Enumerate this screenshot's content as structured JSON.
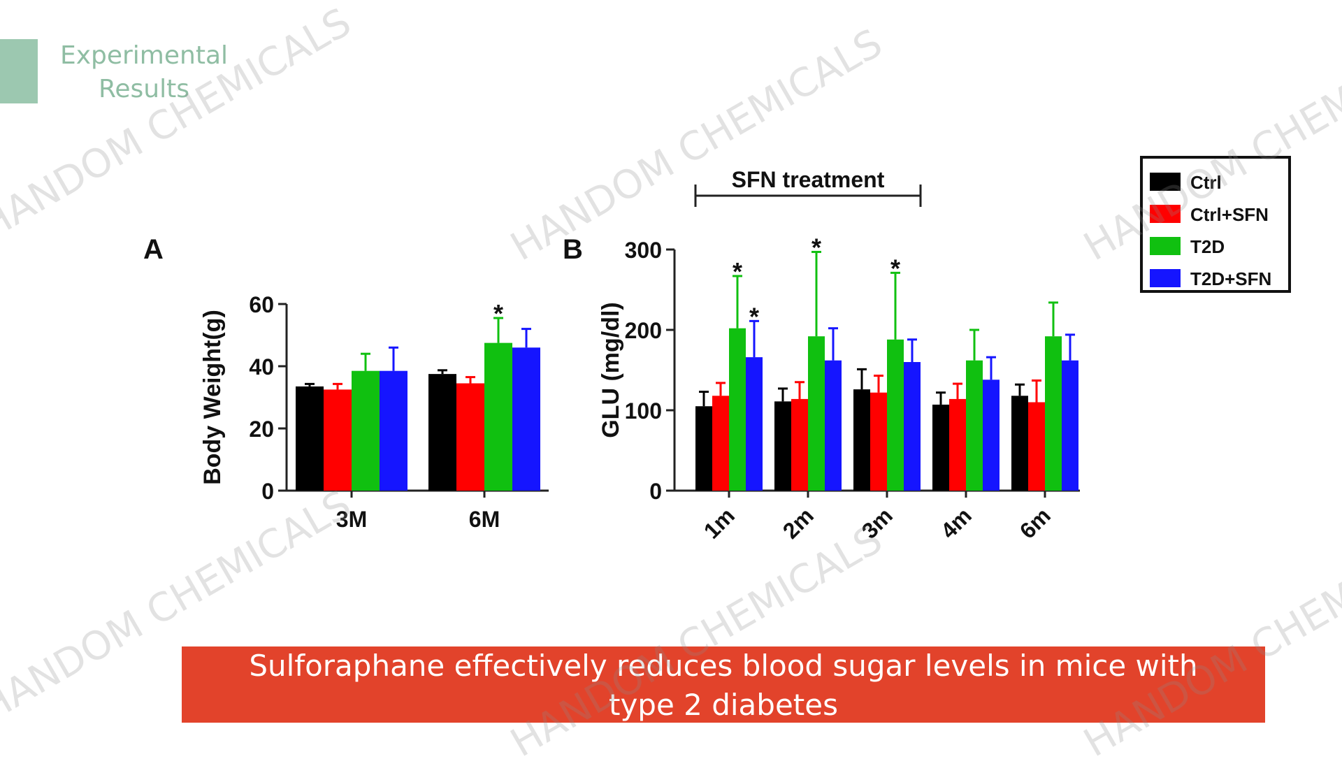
{
  "header": {
    "title_line1": "Experimental",
    "title_line2": "Results"
  },
  "caption": {
    "line1": "Sulforaphane effectively reduces blood sugar levels in mice with",
    "line2": "type 2 diabetes"
  },
  "watermark": "HANDOM CHEMICALS",
  "colors": {
    "accent": "#9cc8b0",
    "accent_text": "#8fbda3",
    "caption_bg": "#e2432b",
    "Ctrl": "#000000",
    "Ctrl+SFN": "#ff0000",
    "T2D": "#10c010",
    "T2D+SFN": "#1515ff"
  },
  "chart_data": [
    {
      "panel": "A",
      "type": "bar",
      "xlabel": "",
      "ylabel": "Body Weight(g)",
      "ylim": [
        0,
        60
      ],
      "yticks": [
        0,
        20,
        40,
        60
      ],
      "categories": [
        "3M",
        "6M"
      ],
      "series": [
        {
          "name": "Ctrl",
          "values": [
            33.5,
            37.5
          ],
          "errors": [
            0.8,
            1.2
          ]
        },
        {
          "name": "Ctrl+SFN",
          "values": [
            32.5,
            34.5
          ],
          "errors": [
            1.8,
            2.0
          ]
        },
        {
          "name": "T2D",
          "values": [
            38.5,
            47.5
          ],
          "errors": [
            5.5,
            8.0
          ]
        },
        {
          "name": "T2D+SFN",
          "values": [
            38.5,
            46.0
          ],
          "errors": [
            7.5,
            6.0
          ]
        }
      ],
      "annotations": [
        {
          "text": "*",
          "category": "6M",
          "series": "T2D"
        }
      ]
    },
    {
      "panel": "B",
      "type": "bar",
      "xlabel": "",
      "ylabel": "GLU (mg/dl)",
      "ylim": [
        0,
        300
      ],
      "yticks": [
        0,
        100,
        200,
        300
      ],
      "categories": [
        "1m",
        "2m",
        "3m",
        "4m",
        "6m"
      ],
      "series": [
        {
          "name": "Ctrl",
          "values": [
            105,
            111,
            126,
            107,
            118
          ],
          "errors": [
            18,
            16,
            25,
            15,
            14
          ]
        },
        {
          "name": "Ctrl+SFN",
          "values": [
            118,
            114,
            122,
            114,
            110
          ],
          "errors": [
            16,
            21,
            21,
            19,
            27
          ]
        },
        {
          "name": "T2D",
          "values": [
            202,
            192,
            188,
            162,
            192
          ],
          "errors": [
            65,
            105,
            83,
            38,
            42
          ]
        },
        {
          "name": "T2D+SFN",
          "values": [
            166,
            162,
            160,
            138,
            162
          ],
          "errors": [
            45,
            40,
            28,
            28,
            32
          ]
        }
      ],
      "annotations": [
        {
          "text": "*",
          "category": "1m",
          "series": "T2D"
        },
        {
          "text": "*",
          "category": "1m",
          "series": "T2D+SFN"
        },
        {
          "text": "*",
          "category": "2m",
          "series": "T2D"
        },
        {
          "text": "*",
          "category": "3m",
          "series": "T2D"
        }
      ],
      "bracket_label": "SFN treatment",
      "bracket_span": [
        "1m",
        "3m"
      ],
      "legend": {
        "placement": "top-right",
        "entries": [
          "Ctrl",
          "Ctrl+SFN",
          "T2D",
          "T2D+SFN"
        ]
      }
    }
  ]
}
